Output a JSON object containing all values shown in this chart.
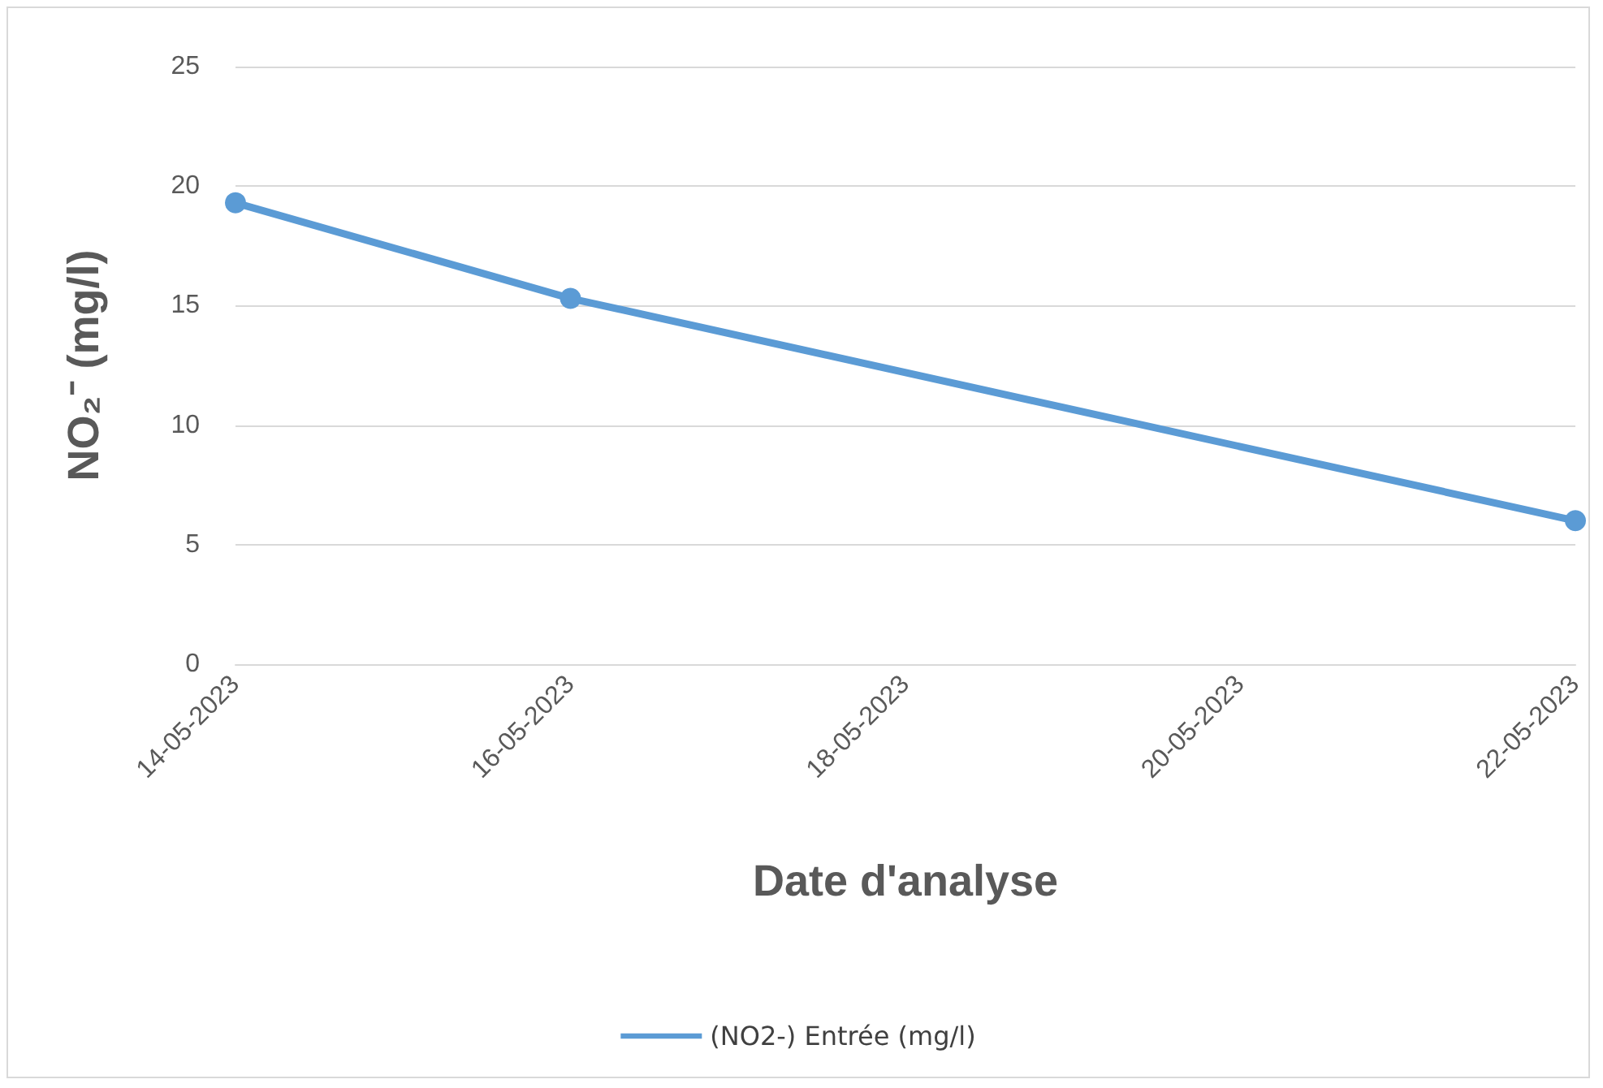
{
  "chart_data": {
    "type": "line",
    "xlabel": "Date d'analyse",
    "ylabel": "NO₂⁻ (mg/l)",
    "x": [
      "2023-05-14",
      "2023-05-16",
      "2023-05-22"
    ],
    "series": [
      {
        "name": "(NO2-) Entrée (mg/l)",
        "color": "#5b9bd5",
        "values": [
          19.3,
          15.3,
          6.0
        ]
      }
    ],
    "xlim": [
      "2023-05-14",
      "2023-05-22"
    ],
    "xticks": [
      {
        "value": "2023-05-14",
        "label": "14-05-2023"
      },
      {
        "value": "2023-05-16",
        "label": "16-05-2023"
      },
      {
        "value": "2023-05-18",
        "label": "18-05-2023"
      },
      {
        "value": "2023-05-20",
        "label": "20-05-2023"
      },
      {
        "value": "2023-05-22",
        "label": "22-05-2023"
      }
    ],
    "ylim": [
      0,
      25
    ],
    "yticks": [
      0,
      5,
      10,
      15,
      20,
      25
    ],
    "grid": "y",
    "legend": "bottom",
    "marker": "circle",
    "line_style": "solid"
  }
}
